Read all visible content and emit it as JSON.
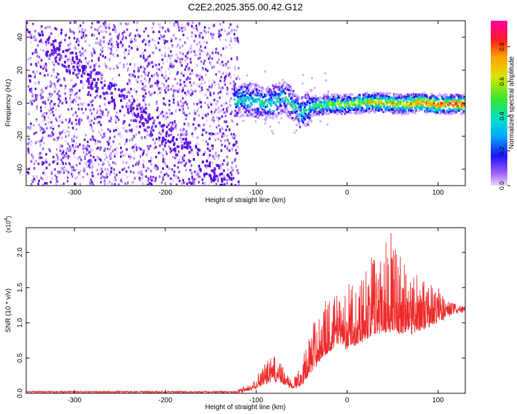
{
  "figure_title": "C2E2.2025.355.00.42.G12",
  "colors": {
    "spectrogram_dot": "#5a00e0",
    "snr_line": "#ee2a2a",
    "axis": "#000000"
  },
  "chart_data": [
    {
      "type": "heatmap",
      "title": "C2E2.2025.355.00.42.G12",
      "xlabel": "Height of straight line (km)",
      "ylabel": "Frequency (Hz)",
      "xlim": [
        -353,
        130
      ],
      "ylim": [
        -50,
        50
      ],
      "xticks": [
        -300,
        -200,
        -100,
        0,
        100
      ],
      "yticks": [
        -40,
        -20,
        0,
        20,
        40
      ],
      "xtick_labels": [
        "-300",
        "-200",
        "-100",
        "0",
        "100"
      ],
      "ytick_labels": [
        "-40",
        "-20",
        "0",
        "20",
        "40"
      ],
      "noise_region_x": [
        -353,
        -120
      ],
      "signal_centerline": {
        "x": [
          -125,
          -110,
          -100,
          -90,
          -80,
          -70,
          -60,
          -50,
          -40,
          -20,
          0,
          20,
          40,
          60,
          80,
          100,
          130
        ],
        "y": [
          2,
          3,
          2,
          0,
          2,
          5,
          -2,
          -5,
          -1,
          0,
          0,
          1,
          1,
          0,
          1,
          0,
          0
        ]
      },
      "colorbar": {
        "label": "Normalized spectral amplitude",
        "range": [
          0.0,
          0.95
        ],
        "ticks": [
          0.0,
          0.2,
          0.4,
          0.6,
          0.8
        ],
        "tick_labels": [
          "0.0",
          "0.2",
          "0.4",
          "0.6",
          "0.8"
        ]
      }
    },
    {
      "type": "line",
      "xlabel": "Height of straight line (km)",
      "ylabel": "SNR (10 * v/v)",
      "y_multiplier": "(x10",
      "y_multiplier_exp": "4",
      "y_multiplier_close": ")",
      "xlim": [
        -353,
        130
      ],
      "ylim": [
        0,
        2.35
      ],
      "xticks": [
        -300,
        -200,
        -100,
        0,
        100
      ],
      "yticks": [
        0.0,
        0.5,
        1.0,
        1.5,
        2.0
      ],
      "xtick_labels": [
        "-300",
        "-200",
        "-100",
        "0",
        "100"
      ],
      "ytick_labels": [
        "0.0",
        "0.5",
        "1.0",
        "1.5",
        "2.0"
      ],
      "series": [
        {
          "name": "SNR",
          "envelope_x": [
            -353,
            -120,
            -105,
            -95,
            -80,
            -70,
            -62,
            -50,
            -40,
            -25,
            -10,
            0,
            10,
            25,
            40,
            50,
            60,
            70,
            80,
            90,
            100,
            110,
            120,
            130
          ],
          "baseline": [
            0.02,
            0.02,
            0.05,
            0.12,
            0.18,
            0.15,
            0.08,
            0.12,
            0.3,
            0.55,
            0.7,
            0.65,
            0.7,
            0.8,
            0.85,
            0.9,
            0.85,
            0.85,
            0.9,
            0.95,
            1.0,
            1.1,
            1.15,
            1.18
          ],
          "peak": [
            0.04,
            0.04,
            0.12,
            0.35,
            0.55,
            0.35,
            0.2,
            0.4,
            0.95,
            1.3,
            1.45,
            1.6,
            1.55,
            1.9,
            2.3,
            2.25,
            2.0,
            1.75,
            1.65,
            1.6,
            1.55,
            1.35,
            1.25,
            1.22
          ]
        }
      ]
    }
  ]
}
